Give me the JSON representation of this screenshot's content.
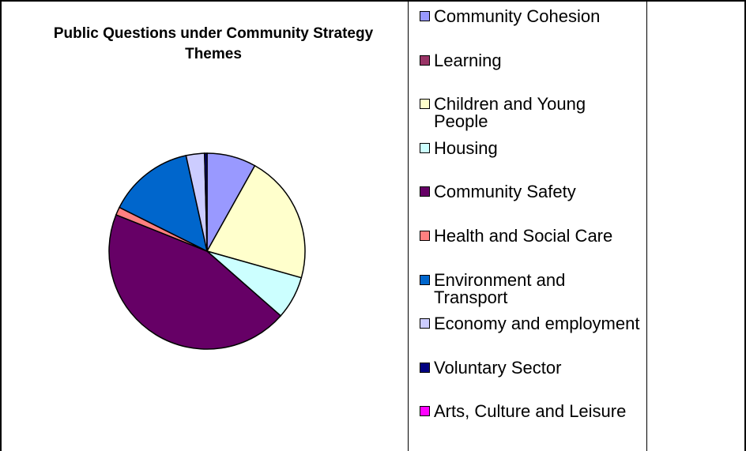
{
  "chart_data": {
    "type": "pie",
    "title": "Public Questions under Community Strategy Themes",
    "legend_position": "right",
    "slices": [
      {
        "label": "Community Cohesion",
        "value": 8,
        "color": "#9999FF"
      },
      {
        "label": "Learning",
        "value": 0,
        "color": "#993366"
      },
      {
        "label": "Children and Young People",
        "value": 21,
        "color": "#FFFFCC"
      },
      {
        "label": "Housing",
        "value": 7,
        "color": "#CCFFFF"
      },
      {
        "label": "Community Safety",
        "value": 44,
        "color": "#660066"
      },
      {
        "label": "Health and Social Care",
        "value": 1.3,
        "color": "#FF8080"
      },
      {
        "label": "Environment and Transport",
        "value": 14,
        "color": "#0066CC"
      },
      {
        "label": "Economy and employment",
        "value": 3,
        "color": "#CCCCFF"
      },
      {
        "label": "Voluntary Sector",
        "value": 0.4,
        "color": "#000080"
      },
      {
        "label": "Arts, Culture and Leisure",
        "value": 0,
        "color": "#FF00FF"
      }
    ]
  }
}
